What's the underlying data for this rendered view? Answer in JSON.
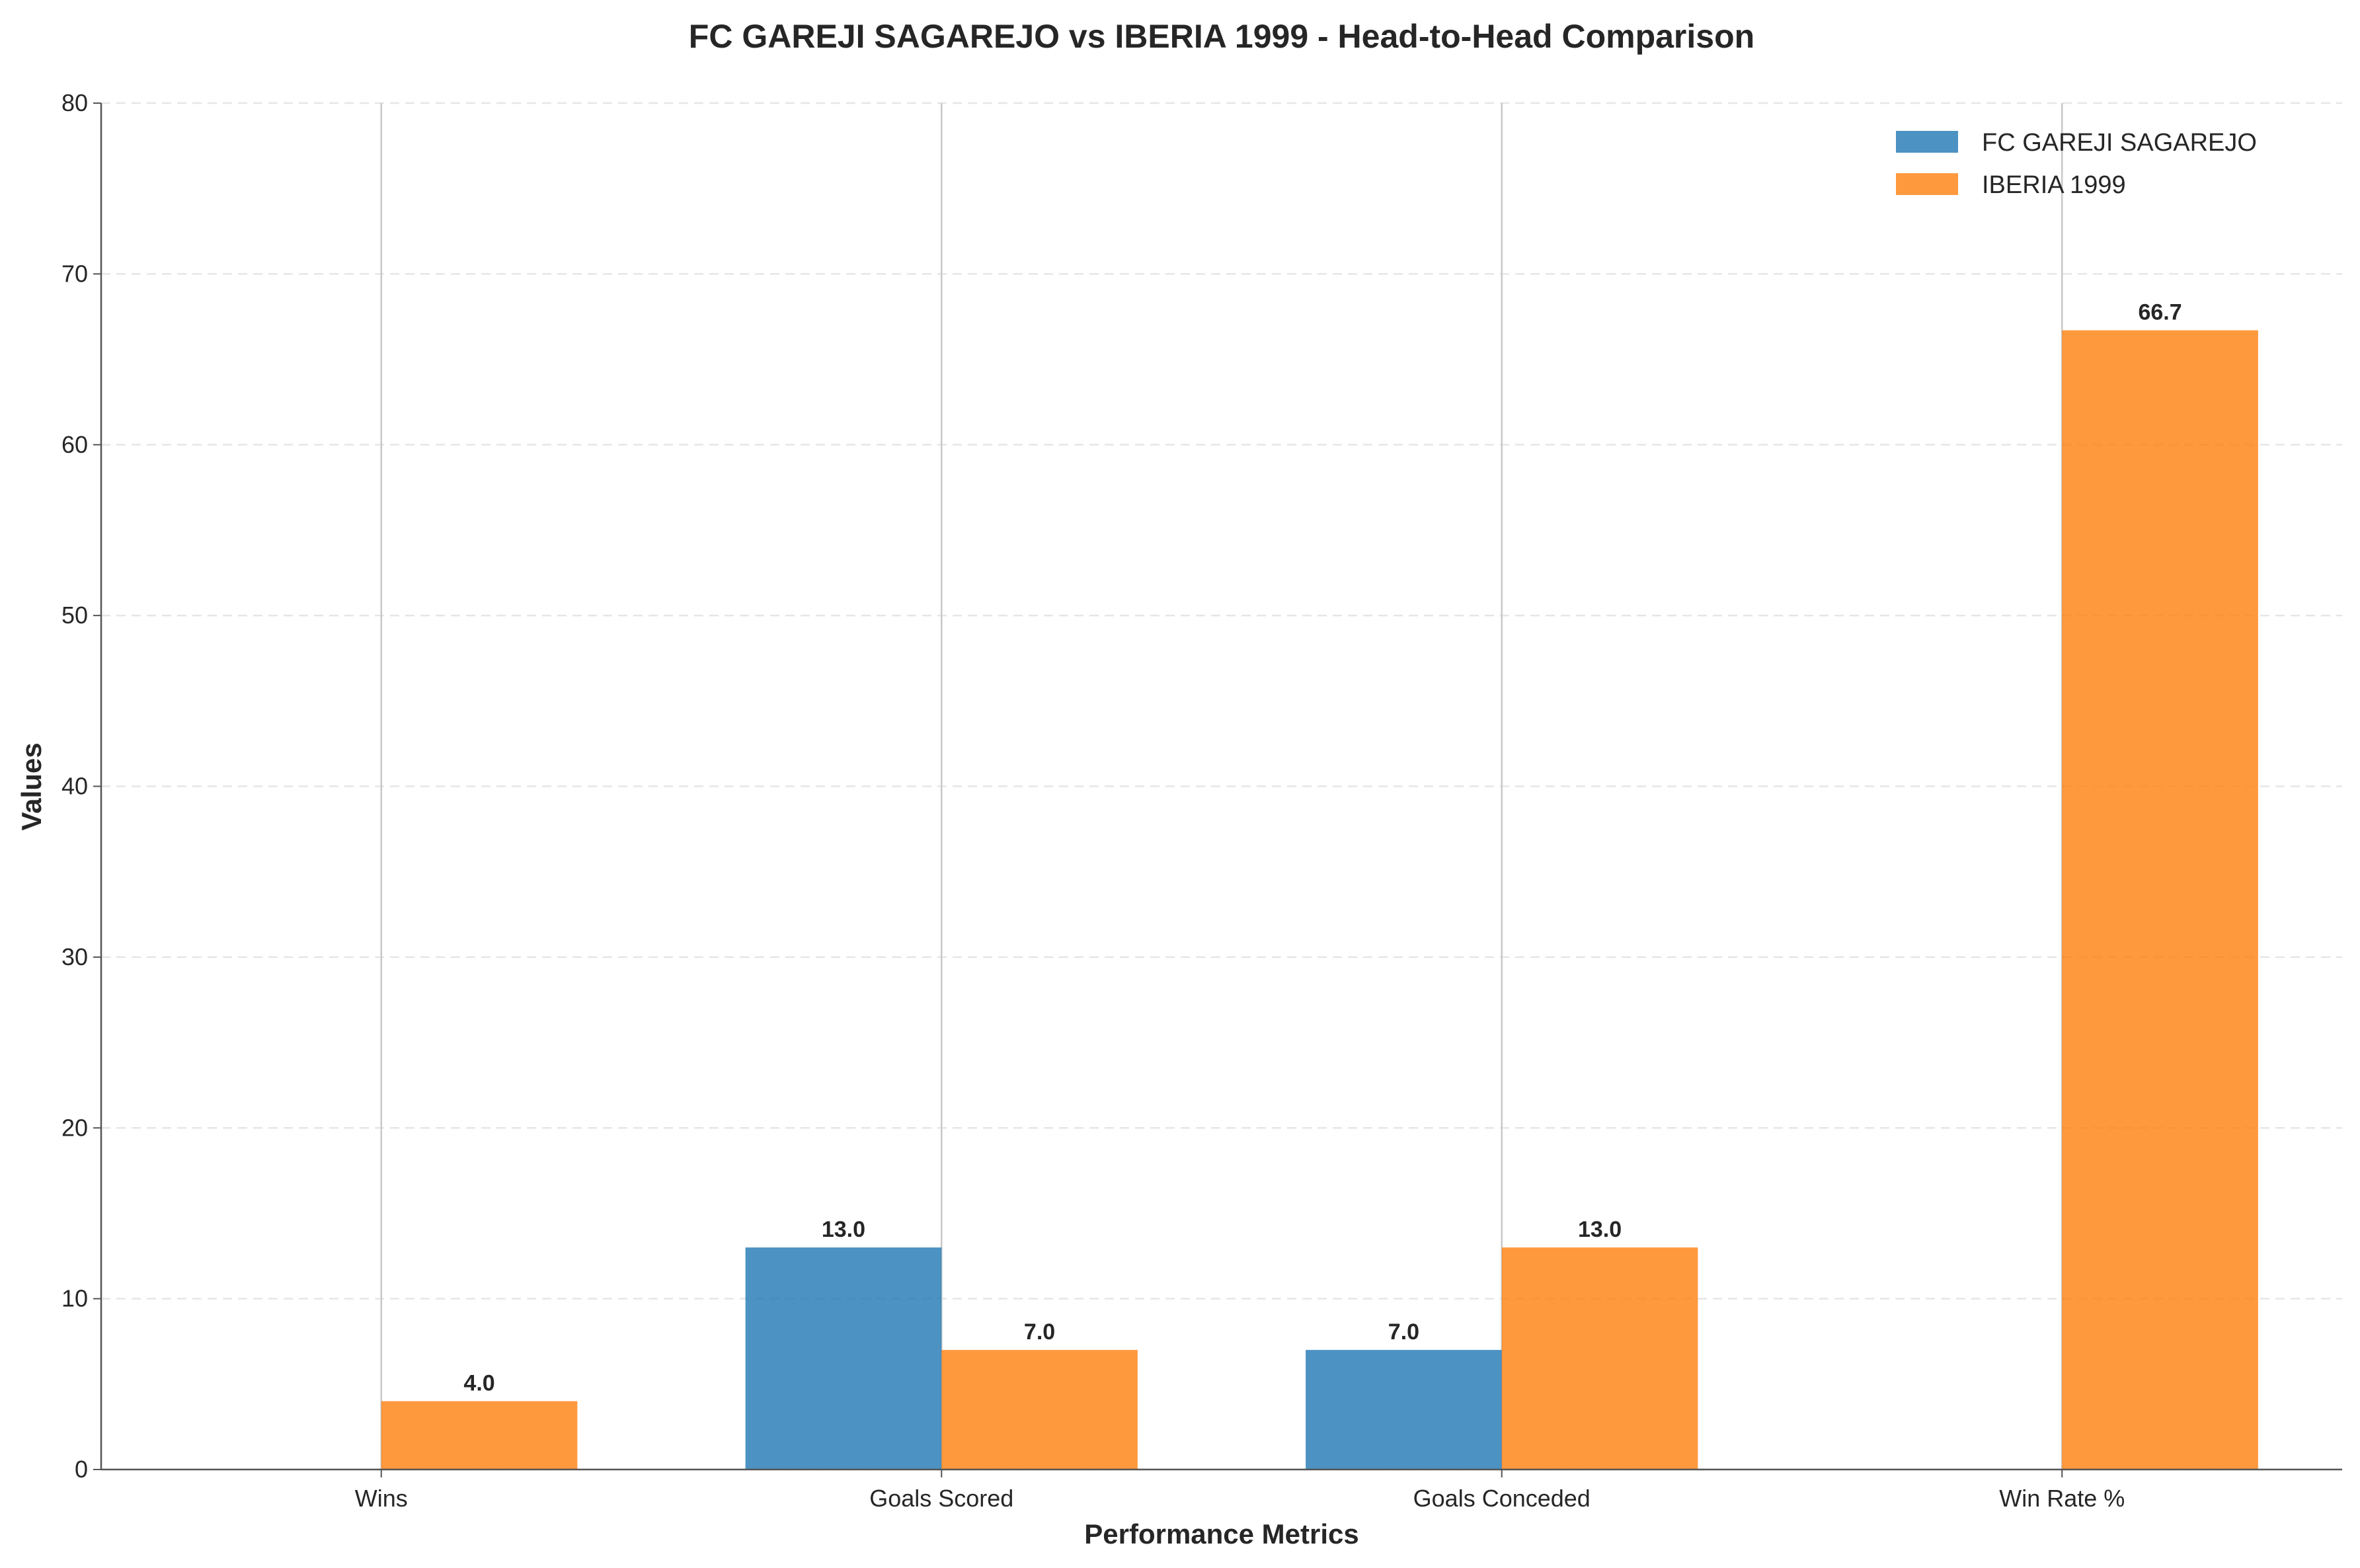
{
  "chart_data": {
    "type": "bar",
    "title": "FC GAREJI SAGAREJO vs IBERIA 1999 - Head-to-Head Comparison",
    "xlabel": "Performance Metrics",
    "ylabel": "Values",
    "categories": [
      "Wins",
      "Goals Scored",
      "Goals Conceded",
      "Win Rate %"
    ],
    "series": [
      {
        "name": "FC GAREJI SAGAREJO",
        "color": "#1f77b4",
        "values": [
          0,
          13.0,
          7.0,
          0
        ],
        "labels": [
          "",
          "13.0",
          "7.0",
          ""
        ]
      },
      {
        "name": "IBERIA 1999",
        "color": "#ff7f0e",
        "values": [
          4.0,
          7.0,
          13.0,
          66.7
        ],
        "labels": [
          "4.0",
          "7.0",
          "13.0",
          "66.7"
        ]
      }
    ],
    "ylim": [
      0,
      80
    ],
    "yticks": [
      "0",
      "10",
      "20",
      "30",
      "40",
      "50",
      "60",
      "70",
      "80"
    ],
    "grid": true,
    "legend_position": "top-right"
  }
}
